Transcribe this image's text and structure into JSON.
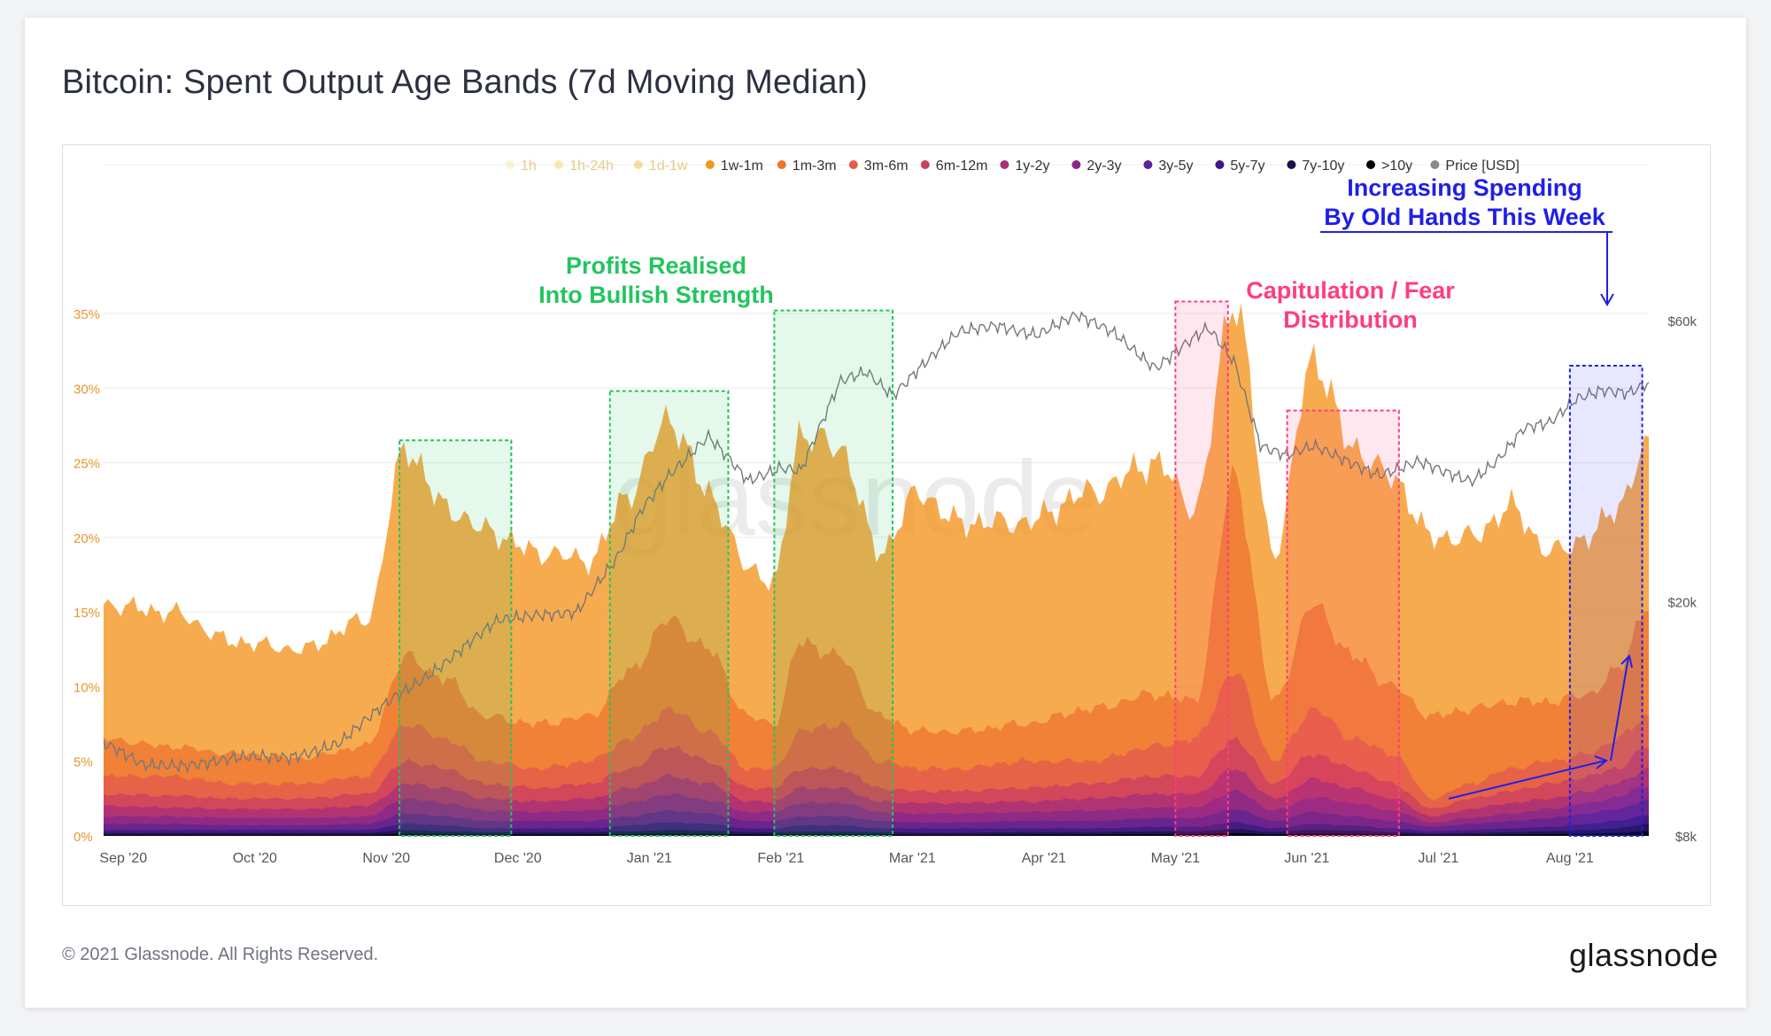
{
  "title": "Bitcoin: Spent Output Age Bands (7d Moving Median)",
  "footer": "© 2021 Glassnode. All Rights Reserved.",
  "brand": "glassnode",
  "watermark": "glassnode",
  "colors": {
    "left_axis_text": "#e8962c",
    "right_axis_text": "#555555",
    "price_line": "#8a8a8a",
    "green": "#22c55e",
    "pink": "#ff3d7f",
    "blue": "#1f1fe8"
  },
  "chart_data": {
    "type": "area",
    "stacked": true,
    "x_ticks": [
      "Sep '20",
      "Oct '20",
      "Nov '20",
      "Dec '20",
      "Jan '21",
      "Feb '21",
      "Mar '21",
      "Apr '21",
      "May '21",
      "Jun '21",
      "Jul '21",
      "Aug '21"
    ],
    "y_left_ticks": [
      "0%",
      "5%",
      "10%",
      "15%",
      "20%",
      "25%",
      "30%",
      "35%"
    ],
    "y_left_range": [
      0,
      35
    ],
    "y_right_ticks": [
      "$8k",
      "$20k",
      "$60k"
    ],
    "y_right_range_usd": [
      8000,
      65000
    ],
    "y_right_scale": "log",
    "x_range_months": [
      0,
      11.75
    ],
    "legend": [
      {
        "name": "1h",
        "color": "#f5e9a8",
        "faded": true
      },
      {
        "name": "1h-24h",
        "color": "#f2d34a",
        "faded": true
      },
      {
        "name": "1d-1w",
        "color": "#f0b429",
        "faded": true
      },
      {
        "name": "1w-1m",
        "color": "#f5941d",
        "faded": false
      },
      {
        "name": "1m-3m",
        "color": "#ee7430",
        "faded": false
      },
      {
        "name": "3m-6m",
        "color": "#e35b4c",
        "faded": false
      },
      {
        "name": "6m-12m",
        "color": "#cc3f5f",
        "faded": false
      },
      {
        "name": "1y-2y",
        "color": "#a8307a",
        "faded": false
      },
      {
        "name": "2y-3y",
        "color": "#87288a",
        "faded": false
      },
      {
        "name": "3y-5y",
        "color": "#5f2290",
        "faded": false
      },
      {
        "name": "5y-7y",
        "color": "#3a1a80",
        "faded": false
      },
      {
        "name": "7y-10y",
        "color": "#1c124a",
        "faded": false
      },
      {
        "name": ">10y",
        "color": "#000000",
        "faded": false
      },
      {
        "name": "Price [USD]",
        "color": "#8a8a8a",
        "faded": false
      }
    ],
    "keyframes_months": [
      0,
      0.5,
      1.0,
      1.5,
      2.0,
      2.3,
      2.6,
      2.9,
      3.3,
      3.7,
      4.0,
      4.3,
      4.6,
      4.9,
      5.1,
      5.3,
      5.6,
      5.9,
      6.2,
      6.5,
      7.0,
      7.5,
      8.0,
      8.3,
      8.6,
      8.9,
      9.2,
      9.5,
      9.8,
      10.1,
      10.4,
      10.7,
      11.0,
      11.3,
      11.5,
      11.75
    ],
    "series": [
      {
        "name": "1w-1m",
        "values": [
          15.5,
          15,
          13,
          12.5,
          14.5,
          26,
          22,
          20.5,
          19,
          18.5,
          23,
          28,
          23,
          18,
          17,
          27,
          26,
          19,
          23,
          21,
          21,
          23,
          25,
          22,
          36,
          19,
          32,
          26,
          24,
          20,
          20,
          22,
          19,
          20,
          22,
          26
        ]
      },
      {
        "name": "1m-3m",
        "values": [
          6.5,
          6.0,
          5.5,
          5.2,
          6.0,
          12.0,
          10.5,
          8.0,
          7.5,
          8.0,
          11.0,
          14.5,
          12.5,
          8.0,
          7.5,
          13.0,
          12.0,
          8.0,
          7.0,
          7.0,
          7.5,
          8.5,
          9.5,
          9.0,
          24.0,
          9.0,
          15.5,
          12.0,
          10.0,
          8.0,
          8.5,
          9.0,
          9.0,
          9.5,
          11.0,
          15.5
        ]
      },
      {
        "name": "3m-6m",
        "values": [
          4.0,
          4.0,
          3.5,
          3.5,
          4.0,
          7.5,
          6.5,
          5.0,
          4.5,
          5.0,
          6.5,
          8.5,
          7.0,
          4.5,
          4.5,
          7.0,
          7.5,
          5.0,
          4.5,
          4.5,
          5.0,
          5.0,
          6.0,
          6.5,
          11.0,
          5.0,
          8.5,
          6.5,
          5.5,
          2.5,
          3.5,
          4.5,
          5.0,
          5.5,
          6.5,
          8.0
        ]
      },
      {
        "name": "6m-12m",
        "values": [
          2.8,
          2.7,
          2.5,
          2.5,
          2.8,
          5.0,
          4.5,
          3.5,
          3.2,
          3.5,
          4.5,
          6.0,
          5.0,
          3.2,
          3.2,
          4.5,
          4.5,
          3.2,
          3.0,
          3.0,
          3.2,
          3.5,
          4.0,
          4.0,
          6.5,
          3.5,
          5.5,
          4.5,
          3.5,
          1.8,
          2.5,
          3.0,
          3.5,
          4.0,
          4.5,
          6.0
        ]
      },
      {
        "name": "1y-2y",
        "values": [
          2.0,
          1.9,
          1.8,
          1.8,
          2.0,
          3.5,
          3.2,
          2.5,
          2.3,
          2.5,
          3.2,
          4.0,
          3.5,
          2.3,
          2.3,
          3.2,
          3.2,
          2.3,
          2.2,
          2.2,
          2.3,
          2.5,
          2.8,
          2.8,
          4.5,
          2.5,
          3.8,
          3.2,
          2.5,
          1.3,
          1.8,
          2.2,
          2.5,
          3.0,
          3.5,
          4.5
        ]
      },
      {
        "name": "2y-3y",
        "values": [
          1.3,
          1.3,
          1.2,
          1.2,
          1.3,
          2.5,
          2.2,
          1.7,
          1.6,
          1.7,
          2.2,
          2.8,
          2.4,
          1.6,
          1.6,
          2.2,
          2.2,
          1.6,
          1.5,
          1.5,
          1.6,
          1.7,
          1.9,
          1.9,
          3.0,
          1.7,
          2.6,
          2.2,
          1.7,
          0.9,
          1.2,
          1.5,
          1.8,
          2.2,
          2.6,
          3.4
        ]
      },
      {
        "name": "3y-5y",
        "values": [
          0.8,
          0.8,
          0.7,
          0.7,
          0.8,
          1.5,
          1.3,
          1.0,
          1.0,
          1.0,
          1.3,
          1.7,
          1.5,
          1.0,
          1.0,
          1.3,
          1.3,
          1.0,
          0.9,
          0.9,
          1.0,
          1.0,
          1.2,
          1.2,
          1.8,
          1.0,
          1.6,
          1.3,
          1.0,
          0.6,
          0.8,
          1.0,
          1.2,
          1.5,
          1.8,
          2.4
        ]
      },
      {
        "name": "5y-7y",
        "values": [
          0.4,
          0.4,
          0.4,
          0.4,
          0.4,
          0.8,
          0.7,
          0.5,
          0.5,
          0.5,
          0.7,
          0.9,
          0.8,
          0.5,
          0.5,
          0.7,
          0.7,
          0.5,
          0.5,
          0.5,
          0.5,
          0.5,
          0.6,
          0.6,
          0.9,
          0.5,
          0.8,
          0.7,
          0.5,
          0.3,
          0.4,
          0.5,
          0.6,
          0.8,
          1.0,
          1.4
        ]
      },
      {
        "name": "7y-10y",
        "values": [
          0.2,
          0.2,
          0.2,
          0.2,
          0.2,
          0.4,
          0.3,
          0.25,
          0.25,
          0.25,
          0.3,
          0.4,
          0.35,
          0.25,
          0.25,
          0.3,
          0.3,
          0.25,
          0.2,
          0.2,
          0.25,
          0.25,
          0.3,
          0.3,
          0.45,
          0.25,
          0.4,
          0.35,
          0.25,
          0.15,
          0.2,
          0.25,
          0.3,
          0.4,
          0.5,
          0.8
        ]
      },
      {
        "name": ">10y",
        "values": [
          0.08,
          0.08,
          0.08,
          0.08,
          0.08,
          0.15,
          0.12,
          0.1,
          0.1,
          0.1,
          0.12,
          0.15,
          0.13,
          0.1,
          0.1,
          0.12,
          0.12,
          0.1,
          0.08,
          0.08,
          0.1,
          0.1,
          0.12,
          0.12,
          0.18,
          0.1,
          0.15,
          0.13,
          0.1,
          0.06,
          0.08,
          0.1,
          0.12,
          0.15,
          0.2,
          0.3
        ]
      }
    ],
    "price": {
      "name": "Price [USD]",
      "x_months": [
        0,
        0.3,
        0.6,
        1.0,
        1.4,
        1.8,
        2.2,
        2.6,
        3.0,
        3.3,
        3.6,
        3.9,
        4.1,
        4.3,
        4.6,
        4.9,
        5.15,
        5.3,
        5.6,
        5.8,
        6.0,
        6.2,
        6.5,
        6.8,
        7.1,
        7.4,
        7.7,
        8.0,
        8.2,
        8.4,
        8.6,
        8.8,
        9.0,
        9.2,
        9.4,
        9.7,
        10.0,
        10.2,
        10.4,
        10.6,
        10.8,
        11.0,
        11.2,
        11.4,
        11.6,
        11.75
      ],
      "values": [
        11500,
        10500,
        10600,
        10800,
        10900,
        11500,
        13700,
        15800,
        18500,
        19100,
        19200,
        23500,
        29000,
        33000,
        38000,
        32000,
        34000,
        33500,
        47000,
        49000,
        45000,
        50000,
        57000,
        59000,
        57000,
        61000,
        57000,
        50000,
        54000,
        58000,
        51000,
        37000,
        35500,
        36500,
        35000,
        33000,
        34500,
        33000,
        32000,
        35000,
        39500,
        40000,
        44000,
        46000,
        45500,
        47000
      ]
    }
  },
  "annotations": {
    "green_text": [
      "Profits Realised",
      "Into Bullish Strength"
    ],
    "pink_text": [
      "Capitulation / Fear",
      "Distribution"
    ],
    "blue_text": [
      "Increasing Spending",
      "By Old Hands This Week"
    ],
    "green_boxes_months": [
      [
        2.25,
        3.1
      ],
      [
        3.85,
        4.75
      ],
      [
        5.1,
        6.0
      ]
    ],
    "pink_boxes_months": [
      [
        8.15,
        8.55
      ],
      [
        9.0,
        9.85
      ]
    ],
    "blue_box_months": [
      11.15,
      11.7
    ],
    "green_box_tops_pct": [
      26.5,
      29.8,
      35.2
    ],
    "pink_box_tops_pct": [
      35.8,
      28.5
    ],
    "blue_box_top_pct": [
      31.5
    ]
  }
}
